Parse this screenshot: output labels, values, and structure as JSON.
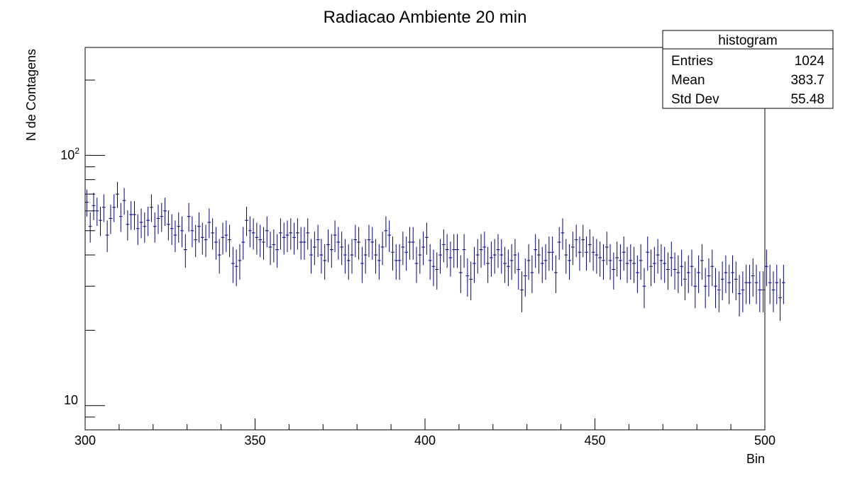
{
  "chart_data": {
    "type": "histogram",
    "title": "Radiacao Ambiente 20 min",
    "xlabel": "Bin",
    "ylabel": "N de Contagens",
    "xlim": [
      300,
      500
    ],
    "ylim": [
      8,
      270
    ],
    "yscale": "log",
    "grid": false,
    "x_ticks": [
      "300",
      "350",
      "400",
      "450",
      "500"
    ],
    "y_tick_labels": [
      "10",
      "10^2"
    ],
    "series_color": "#000080",
    "bin_start": 300,
    "bin_width": 1,
    "values": [
      65,
      52,
      63,
      60,
      55,
      62,
      48,
      56,
      62,
      70,
      57,
      66,
      53,
      58,
      58,
      51,
      54,
      52,
      55,
      62,
      52,
      56,
      57,
      60,
      53,
      51,
      48,
      52,
      50,
      42,
      57,
      50,
      46,
      52,
      47,
      46,
      54,
      49,
      45,
      40,
      47,
      48,
      46,
      37,
      36,
      38,
      45,
      55,
      50,
      49,
      47,
      46,
      45,
      50,
      43,
      44,
      42,
      49,
      47,
      48,
      49,
      47,
      49,
      45,
      45,
      49,
      40,
      43,
      46,
      40,
      38,
      44,
      42,
      48,
      45,
      43,
      40,
      38,
      40,
      46,
      45,
      37,
      40,
      46,
      45,
      40,
      38,
      43,
      50,
      48,
      41,
      38,
      38,
      43,
      41,
      45,
      45,
      37,
      40,
      43,
      47,
      38,
      36,
      35,
      40,
      44,
      42,
      39,
      42,
      42,
      34,
      42,
      33,
      32,
      37,
      40,
      42,
      43,
      37,
      39,
      40,
      42,
      40,
      37,
      36,
      38,
      40,
      35,
      29,
      33,
      38,
      34,
      42,
      40,
      37,
      38,
      41,
      41,
      34,
      45,
      49,
      40,
      38,
      43,
      46,
      41,
      46,
      41,
      44,
      41,
      40,
      39,
      38,
      43,
      38,
      35,
      39,
      38,
      41,
      37,
      38,
      37,
      34,
      38,
      30,
      41,
      36,
      37,
      40,
      38,
      37,
      35,
      39,
      35,
      34,
      36,
      32,
      34,
      36,
      30,
      34,
      38,
      30,
      33,
      36,
      30,
      29,
      32,
      34,
      31,
      34,
      32,
      28,
      29,
      31,
      31,
      33,
      31,
      29,
      29,
      36,
      31,
      29,
      31,
      27,
      31
    ],
    "stats": {
      "title": "histogram",
      "entries": {
        "label": "Entries",
        "value": "1024"
      },
      "mean": {
        "label": "Mean",
        "value": "383.7"
      },
      "std_dev": {
        "label": "Std Dev",
        "value": "55.48"
      }
    }
  }
}
